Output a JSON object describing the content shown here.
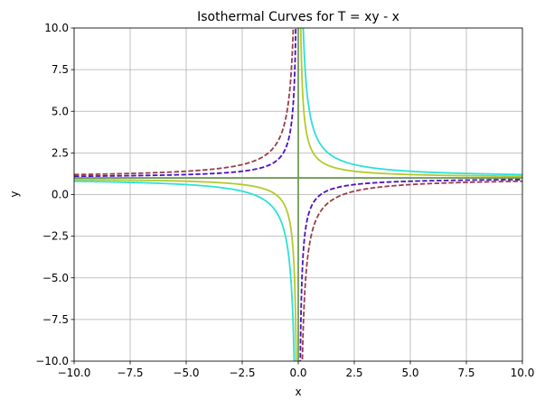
{
  "chart_data": {
    "type": "line",
    "title": "Isothermal Curves for T = xy - x",
    "xlabel": "x",
    "ylabel": "y",
    "xlim": [
      -10,
      10
    ],
    "ylim": [
      -10,
      10
    ],
    "grid": true,
    "legend": "none",
    "equation": "y = 1 + T/x",
    "x_ticks": [
      "−10.0",
      "−7.5",
      "−5.0",
      "−2.5",
      "0.0",
      "2.5",
      "5.0",
      "7.5",
      "10.0"
    ],
    "y_ticks": [
      "−10.0",
      "−7.5",
      "−5.0",
      "−2.5",
      "0.0",
      "2.5",
      "5.0",
      "7.5",
      "10.0"
    ],
    "x_tick_values": [
      -10,
      -7.5,
      -5,
      -2.5,
      0,
      2.5,
      5,
      7.5,
      10
    ],
    "y_tick_values": [
      -10,
      -7.5,
      -5,
      -2.5,
      0,
      2.5,
      5,
      7.5,
      10
    ],
    "series": [
      {
        "T": -2,
        "color": "#9b3d48",
        "dash": "dashed"
      },
      {
        "T": -1,
        "color": "#4b0fc7",
        "dash": "dashed"
      },
      {
        "T": 0,
        "color": "#6f9b5a",
        "dash": "solid"
      },
      {
        "T": 1,
        "color": "#b5c92c",
        "dash": "solid"
      },
      {
        "T": 2,
        "color": "#2ee0d8",
        "dash": "solid"
      }
    ]
  }
}
